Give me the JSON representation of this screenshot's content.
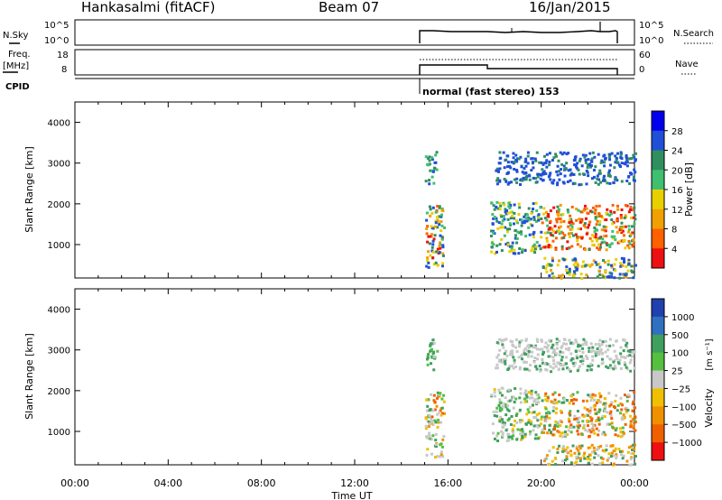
{
  "header": {
    "station": "Hankasalmi (fitACF)",
    "beam": "Beam 07",
    "date": "16/Jan/2015"
  },
  "noise_panel": {
    "left_label": "N.Sky",
    "right_label": "N.Search",
    "ticks_left": [
      "10^5",
      "10^0"
    ],
    "ticks_right": [
      "10^5",
      "10^0"
    ]
  },
  "freq_panel": {
    "left_label": "Freq.",
    "left_unit": "[MHz]",
    "right_label": "Nave",
    "ticks_left": [
      "18",
      "8"
    ],
    "ticks_right": [
      "60",
      "0"
    ]
  },
  "cpid": {
    "label": "CPID",
    "program": "normal (fast stereo) 153"
  },
  "chart_data": [
    {
      "type": "heatmap",
      "name": "power",
      "ylabel": "Slant Range [km]",
      "yticks": [
        "4000",
        "3000",
        "2000",
        "1000"
      ],
      "xlim": [
        "00:00",
        "24:00"
      ],
      "ylim": [
        180,
        4500
      ],
      "colorbar": {
        "label": "Power [dB]",
        "ticks": [
          "28",
          "24",
          "20",
          "16",
          "12",
          "8",
          "4"
        ],
        "colors": [
          "#0000ee",
          "#1f4fd8",
          "#2f8f5f",
          "#3fbf6f",
          "#e8d000",
          "#f0a000",
          "#ff6000",
          "#ee1010"
        ]
      }
    },
    {
      "type": "heatmap",
      "name": "velocity",
      "ylabel": "Slant Range [km]",
      "yticks": [
        "4000",
        "3000",
        "2000",
        "1000"
      ],
      "xlim": [
        "00:00",
        "24:00"
      ],
      "ylim": [
        180,
        4500
      ],
      "colorbar": {
        "label": "Velocity",
        "unit": "[m s⁻¹]",
        "ticks": [
          "1000",
          "500",
          "100",
          "25",
          "−25",
          "−100",
          "−500",
          "−1000"
        ],
        "colors": [
          "#2040b0",
          "#3070c0",
          "#3f9f5f",
          "#55c040",
          "#c8c8c8",
          "#f0c000",
          "#f09000",
          "#f06000",
          "#ee1010"
        ]
      }
    }
  ],
  "xaxis": {
    "ticks": [
      "00:00",
      "04:00",
      "08:00",
      "12:00",
      "16:00",
      "20:00",
      "00:00"
    ],
    "label": "Time UT"
  }
}
